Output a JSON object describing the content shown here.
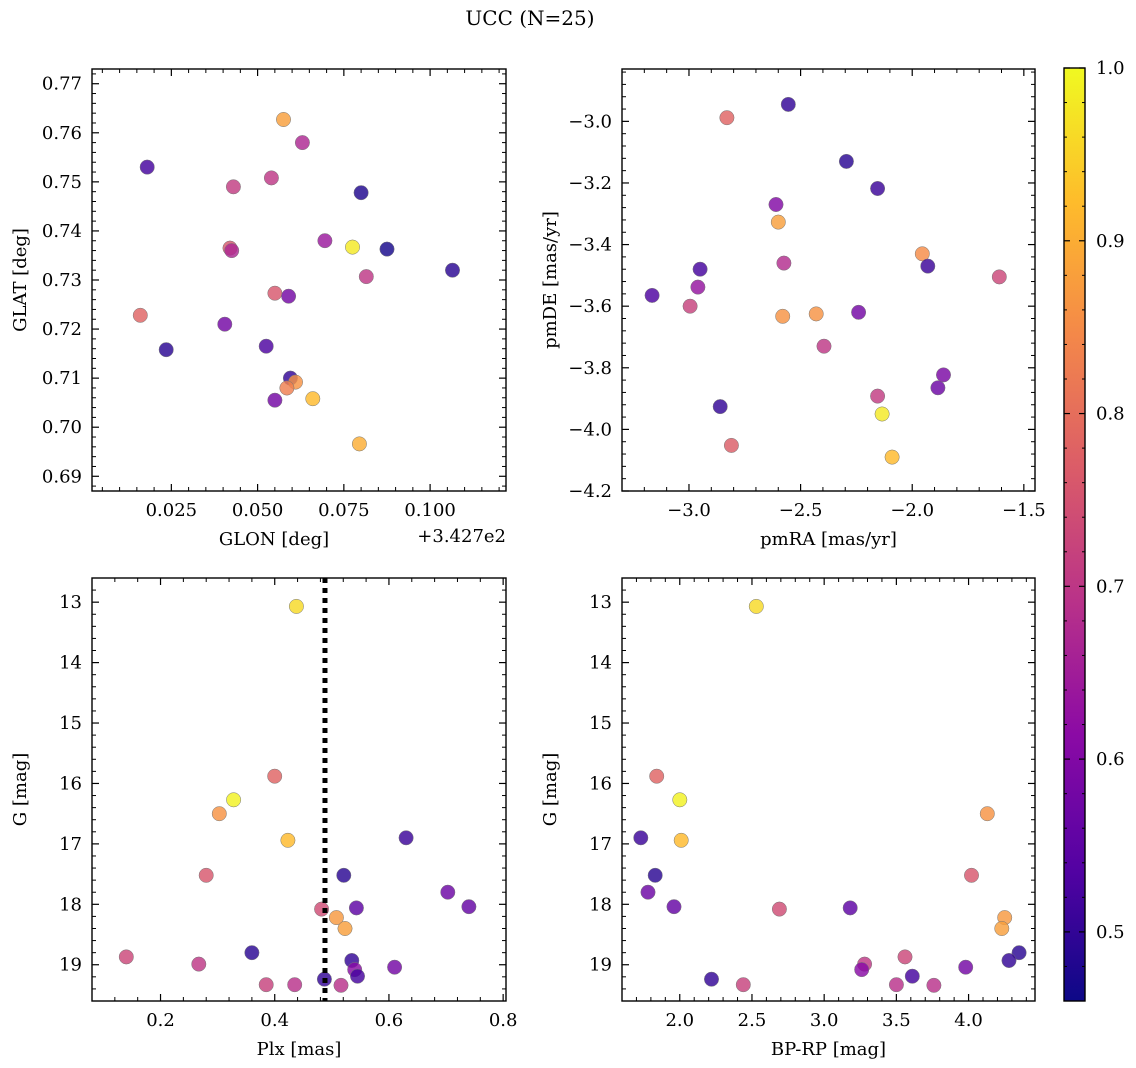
{
  "figure": {
    "suptitle": "UCC (N=25)",
    "colorbar": {
      "colormap": "plasma",
      "range": [
        0.46,
        1.0
      ],
      "ticks": [
        0.5,
        0.6,
        0.7,
        0.8,
        0.9,
        1.0
      ],
      "tick_labels": [
        "0.5",
        "0.6",
        "0.7",
        "0.8",
        "0.9",
        "1.0"
      ]
    }
  },
  "chart_data": [
    {
      "type": "scatter",
      "title": "",
      "xlabel": "GLON [deg]",
      "ylabel": "GLAT [deg]",
      "x_offset_label": "+3.427e2",
      "xlim": [
        0.002,
        0.122
      ],
      "ylim": [
        0.687,
        0.773
      ],
      "xticks": [
        0.025,
        0.05,
        0.075,
        0.1
      ],
      "xtick_labels": [
        "0.025",
        "0.050",
        "0.075",
        "0.100"
      ],
      "yticks": [
        0.69,
        0.7,
        0.71,
        0.72,
        0.73,
        0.74,
        0.75,
        0.76,
        0.77
      ],
      "ytick_labels": [
        "0.69",
        "0.70",
        "0.71",
        "0.72",
        "0.73",
        "0.74",
        "0.75",
        "0.76",
        "0.77"
      ],
      "points": [
        {
          "x": 0.0575,
          "y": 0.7627,
          "c": 0.88
        },
        {
          "x": 0.063,
          "y": 0.758,
          "c": 0.67
        },
        {
          "x": 0.018,
          "y": 0.753,
          "c": 0.52
        },
        {
          "x": 0.054,
          "y": 0.7508,
          "c": 0.7
        },
        {
          "x": 0.043,
          "y": 0.749,
          "c": 0.71
        },
        {
          "x": 0.08,
          "y": 0.7478,
          "c": 0.48
        },
        {
          "x": 0.0695,
          "y": 0.738,
          "c": 0.64
        },
        {
          "x": 0.0775,
          "y": 0.7367,
          "c": 0.98
        },
        {
          "x": 0.0875,
          "y": 0.7363,
          "c": 0.47
        },
        {
          "x": 0.042,
          "y": 0.7365,
          "c": 0.76
        },
        {
          "x": 0.0425,
          "y": 0.736,
          "c": 0.67
        },
        {
          "x": 0.1065,
          "y": 0.732,
          "c": 0.49
        },
        {
          "x": 0.0815,
          "y": 0.7307,
          "c": 0.7
        },
        {
          "x": 0.055,
          "y": 0.7273,
          "c": 0.76
        },
        {
          "x": 0.059,
          "y": 0.7267,
          "c": 0.58
        },
        {
          "x": 0.016,
          "y": 0.7228,
          "c": 0.78
        },
        {
          "x": 0.0405,
          "y": 0.721,
          "c": 0.58
        },
        {
          "x": 0.0235,
          "y": 0.7158,
          "c": 0.49
        },
        {
          "x": 0.0525,
          "y": 0.7165,
          "c": 0.53
        },
        {
          "x": 0.0595,
          "y": 0.71,
          "c": 0.5
        },
        {
          "x": 0.061,
          "y": 0.7092,
          "c": 0.86
        },
        {
          "x": 0.0585,
          "y": 0.708,
          "c": 0.83
        },
        {
          "x": 0.066,
          "y": 0.7058,
          "c": 0.92
        },
        {
          "x": 0.055,
          "y": 0.7055,
          "c": 0.58
        },
        {
          "x": 0.0795,
          "y": 0.6966,
          "c": 0.9
        }
      ]
    },
    {
      "type": "scatter",
      "title": "",
      "xlabel": "pmRA [mas/yr]",
      "ylabel": "pmDE [mas/yr]",
      "xlim": [
        -3.3,
        -1.45
      ],
      "ylim": [
        -4.2,
        -2.83
      ],
      "xticks": [
        -3.0,
        -2.5,
        -2.0,
        -1.5
      ],
      "xtick_labels": [
        "−3.0",
        "−2.5",
        "−2.0",
        "−1.5"
      ],
      "yticks": [
        -4.2,
        -4.0,
        -3.8,
        -3.6,
        -3.4,
        -3.2,
        -3.0
      ],
      "ytick_labels": [
        "−4.2",
        "−4.0",
        "−3.8",
        "−3.6",
        "−3.4",
        "−3.2",
        "−3.0"
      ],
      "points": [
        {
          "x": -2.83,
          "y": -2.988,
          "c": 0.78
        },
        {
          "x": -2.555,
          "y": -2.945,
          "c": 0.5
        },
        {
          "x": -2.295,
          "y": -3.13,
          "c": 0.49
        },
        {
          "x": -2.155,
          "y": -3.218,
          "c": 0.51
        },
        {
          "x": -2.61,
          "y": -3.27,
          "c": 0.6
        },
        {
          "x": -2.6,
          "y": -3.327,
          "c": 0.88
        },
        {
          "x": -1.955,
          "y": -3.43,
          "c": 0.85
        },
        {
          "x": -2.575,
          "y": -3.46,
          "c": 0.68
        },
        {
          "x": -1.93,
          "y": -3.47,
          "c": 0.51
        },
        {
          "x": -2.95,
          "y": -3.48,
          "c": 0.52
        },
        {
          "x": -1.61,
          "y": -3.505,
          "c": 0.73
        },
        {
          "x": -2.96,
          "y": -3.538,
          "c": 0.63
        },
        {
          "x": -3.165,
          "y": -3.565,
          "c": 0.53
        },
        {
          "x": -2.995,
          "y": -3.6,
          "c": 0.72
        },
        {
          "x": -2.58,
          "y": -3.633,
          "c": 0.86
        },
        {
          "x": -2.43,
          "y": -3.625,
          "c": 0.86
        },
        {
          "x": -2.24,
          "y": -3.62,
          "c": 0.58
        },
        {
          "x": -2.395,
          "y": -3.73,
          "c": 0.7
        },
        {
          "x": -1.86,
          "y": -3.823,
          "c": 0.59
        },
        {
          "x": -1.885,
          "y": -3.865,
          "c": 0.57
        },
        {
          "x": -2.155,
          "y": -3.892,
          "c": 0.71
        },
        {
          "x": -2.86,
          "y": -3.926,
          "c": 0.5
        },
        {
          "x": -2.135,
          "y": -3.95,
          "c": 0.98
        },
        {
          "x": -2.81,
          "y": -4.052,
          "c": 0.77
        },
        {
          "x": -2.09,
          "y": -4.09,
          "c": 0.92
        }
      ]
    },
    {
      "type": "scatter",
      "title": "",
      "xlabel": "Plx [mas]",
      "ylabel": "G [mag]",
      "y_inverted": true,
      "xlim": [
        0.08,
        0.805
      ],
      "ylim": [
        19.6,
        12.6
      ],
      "xticks": [
        0.2,
        0.4,
        0.6,
        0.8
      ],
      "xtick_labels": [
        "0.2",
        "0.4",
        "0.6",
        "0.8"
      ],
      "yticks": [
        13,
        14,
        15,
        16,
        17,
        18,
        19
      ],
      "ytick_labels": [
        "13",
        "14",
        "15",
        "16",
        "17",
        "18",
        "19"
      ],
      "vline": {
        "x": 0.488,
        "style": "dotted"
      },
      "points": [
        {
          "x": 0.438,
          "y": 13.07,
          "c": 0.96
        },
        {
          "x": 0.4,
          "y": 15.88,
          "c": 0.78
        },
        {
          "x": 0.328,
          "y": 16.27,
          "c": 0.99
        },
        {
          "x": 0.303,
          "y": 16.5,
          "c": 0.86
        },
        {
          "x": 0.423,
          "y": 16.94,
          "c": 0.92
        },
        {
          "x": 0.63,
          "y": 16.9,
          "c": 0.51
        },
        {
          "x": 0.28,
          "y": 17.52,
          "c": 0.76
        },
        {
          "x": 0.521,
          "y": 17.52,
          "c": 0.49
        },
        {
          "x": 0.703,
          "y": 17.8,
          "c": 0.57
        },
        {
          "x": 0.74,
          "y": 18.04,
          "c": 0.56
        },
        {
          "x": 0.543,
          "y": 18.06,
          "c": 0.55
        },
        {
          "x": 0.482,
          "y": 18.08,
          "c": 0.74
        },
        {
          "x": 0.508,
          "y": 18.22,
          "c": 0.87
        },
        {
          "x": 0.523,
          "y": 18.4,
          "c": 0.88
        },
        {
          "x": 0.36,
          "y": 18.8,
          "c": 0.49
        },
        {
          "x": 0.14,
          "y": 18.87,
          "c": 0.73
        },
        {
          "x": 0.535,
          "y": 18.93,
          "c": 0.5
        },
        {
          "x": 0.267,
          "y": 18.99,
          "c": 0.7
        },
        {
          "x": 0.61,
          "y": 19.04,
          "c": 0.58
        },
        {
          "x": 0.54,
          "y": 19.08,
          "c": 0.61
        },
        {
          "x": 0.545,
          "y": 19.19,
          "c": 0.52
        },
        {
          "x": 0.487,
          "y": 19.24,
          "c": 0.5
        },
        {
          "x": 0.385,
          "y": 19.33,
          "c": 0.72
        },
        {
          "x": 0.435,
          "y": 19.33,
          "c": 0.69
        },
        {
          "x": 0.516,
          "y": 19.34,
          "c": 0.69
        }
      ]
    },
    {
      "type": "scatter",
      "title": "",
      "xlabel": "BP-RP [mag]",
      "ylabel": "G [mag]",
      "y_inverted": true,
      "xlim": [
        1.6,
        4.46
      ],
      "ylim": [
        19.6,
        12.6
      ],
      "xticks": [
        2.0,
        2.5,
        3.0,
        3.5,
        4.0
      ],
      "xtick_labels": [
        "2.0",
        "2.5",
        "3.0",
        "3.5",
        "4.0"
      ],
      "yticks": [
        13,
        14,
        15,
        16,
        17,
        18,
        19
      ],
      "ytick_labels": [
        "13",
        "14",
        "15",
        "16",
        "17",
        "18",
        "19"
      ],
      "points": [
        {
          "x": 2.53,
          "y": 13.07,
          "c": 0.96
        },
        {
          "x": 1.84,
          "y": 15.88,
          "c": 0.78
        },
        {
          "x": 2.0,
          "y": 16.27,
          "c": 0.99
        },
        {
          "x": 4.13,
          "y": 16.5,
          "c": 0.86
        },
        {
          "x": 1.73,
          "y": 16.9,
          "c": 0.51
        },
        {
          "x": 2.01,
          "y": 16.94,
          "c": 0.92
        },
        {
          "x": 1.83,
          "y": 17.52,
          "c": 0.49
        },
        {
          "x": 4.02,
          "y": 17.52,
          "c": 0.76
        },
        {
          "x": 1.78,
          "y": 17.8,
          "c": 0.57
        },
        {
          "x": 1.96,
          "y": 18.04,
          "c": 0.56
        },
        {
          "x": 3.18,
          "y": 18.06,
          "c": 0.55
        },
        {
          "x": 2.69,
          "y": 18.08,
          "c": 0.74
        },
        {
          "x": 4.25,
          "y": 18.22,
          "c": 0.87
        },
        {
          "x": 4.23,
          "y": 18.4,
          "c": 0.88
        },
        {
          "x": 4.35,
          "y": 18.8,
          "c": 0.49
        },
        {
          "x": 3.56,
          "y": 18.87,
          "c": 0.73
        },
        {
          "x": 4.28,
          "y": 18.93,
          "c": 0.5
        },
        {
          "x": 3.28,
          "y": 18.99,
          "c": 0.7
        },
        {
          "x": 3.98,
          "y": 19.04,
          "c": 0.58
        },
        {
          "x": 3.26,
          "y": 19.08,
          "c": 0.61
        },
        {
          "x": 3.61,
          "y": 19.19,
          "c": 0.52
        },
        {
          "x": 2.22,
          "y": 19.24,
          "c": 0.5
        },
        {
          "x": 2.44,
          "y": 19.33,
          "c": 0.72
        },
        {
          "x": 3.5,
          "y": 19.33,
          "c": 0.69
        },
        {
          "x": 3.76,
          "y": 19.34,
          "c": 0.69
        }
      ]
    }
  ]
}
